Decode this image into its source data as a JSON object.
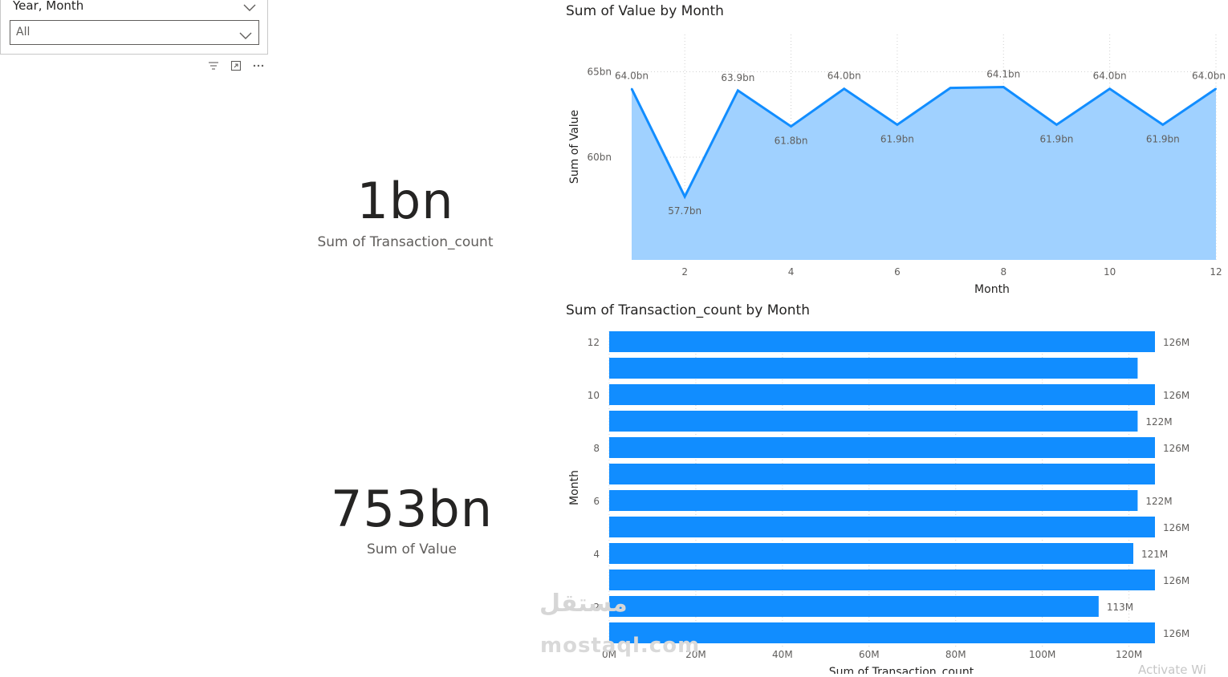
{
  "slicer": {
    "title": "Year, Month",
    "selected": "All"
  },
  "visual_icons": [
    "filter-icon",
    "focus-mode-icon",
    "more-options-icon"
  ],
  "cards": [
    {
      "value": "1bn",
      "label": "Sum of Transaction_count"
    },
    {
      "value": "753bn",
      "label": "Sum of Value"
    }
  ],
  "colors": {
    "line": "#118dff",
    "area": "#a0d1ff",
    "bar": "#118dff",
    "grid": "#e0e0e0",
    "axis_text": "#605e5c"
  },
  "watermark": {
    "arabic": "مستقل",
    "latin": "mostaql.com"
  },
  "activate_text": "Activate Wi",
  "chart_data": [
    {
      "type": "area",
      "title": "Sum of Value by Month",
      "xlabel": "Month",
      "ylabel": "Sum of Value",
      "x": [
        1,
        2,
        3,
        4,
        5,
        6,
        7,
        8,
        9,
        10,
        11,
        12
      ],
      "values": [
        64.0,
        57.7,
        63.9,
        61.8,
        64.0,
        61.9,
        64.05,
        64.1,
        61.9,
        64.0,
        61.9,
        64.0
      ],
      "data_labels": [
        "64.0bn",
        "57.7bn",
        "63.9bn",
        "61.8bn",
        "64.0bn",
        "61.9bn",
        "",
        "64.1bn",
        "61.9bn",
        "64.0bn",
        "61.9bn",
        "64.0bn"
      ],
      "x_ticks": [
        2,
        4,
        6,
        8,
        10,
        12
      ],
      "y_ticks": [
        {
          "value": 60,
          "label": "60bn"
        },
        {
          "value": 65,
          "label": "65bn"
        }
      ],
      "ylim": [
        54.0,
        66.0
      ],
      "xlim": [
        1,
        12
      ],
      "grid": true
    },
    {
      "type": "bar",
      "orientation": "horizontal",
      "title": "Sum of Transaction_count by Month",
      "xlabel": "Sum of Transaction_count",
      "ylabel": "Month",
      "categories": [
        12,
        11,
        10,
        9,
        8,
        7,
        6,
        5,
        4,
        3,
        2,
        1
      ],
      "category_labels": [
        "12",
        "",
        "10",
        "",
        "8",
        "",
        "6",
        "",
        "4",
        "",
        "2",
        ""
      ],
      "values": [
        126,
        122,
        126,
        122,
        126,
        126,
        122,
        126,
        121,
        126,
        113,
        126
      ],
      "data_labels": [
        "126M",
        "",
        "126M",
        "122M",
        "126M",
        "",
        "122M",
        "126M",
        "121M",
        "126M",
        "113M",
        "126M"
      ],
      "x_ticks": [
        {
          "value": 0,
          "label": "0M"
        },
        {
          "value": 20,
          "label": "20M"
        },
        {
          "value": 40,
          "label": "40M"
        },
        {
          "value": 60,
          "label": "60M"
        },
        {
          "value": 80,
          "label": "80M"
        },
        {
          "value": 100,
          "label": "100M"
        },
        {
          "value": 120,
          "label": "120M"
        }
      ],
      "xlim": [
        0,
        130
      ]
    }
  ]
}
